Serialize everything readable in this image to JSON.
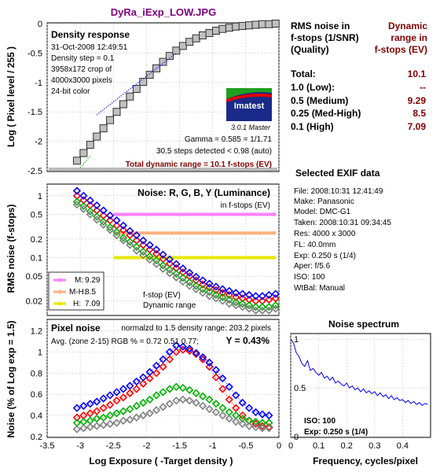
{
  "title": "DyRa_iExp_LOW.JPG",
  "colors": {
    "title": "#800080",
    "dark_red": "#800000",
    "panel_bg": "#ffffff",
    "red": "#ff0000",
    "green": "#00b000",
    "blue": "#0000ff",
    "gray": "#808080",
    "band_m": "#ff80ff",
    "band_mh": "#ffb080",
    "band_h": "#e8e800"
  },
  "density": {
    "heading": "Density response",
    "info": [
      "31-Oct-2008 12:49:51",
      "Density step = 0.1",
      "3958x172 crop of",
      "4000x3000 pixels",
      "24-bit color"
    ],
    "logo": "Imatest",
    "version": "3.0.1  Master",
    "gamma": "Gamma = 0.585 = 1/1.71",
    "steps": "30.5 steps detected < 0.98 (auto)",
    "total": "Total dynamic range = 10.1 f-stops (EV)",
    "ylabel": "Log ( Pixel level / 255 )",
    "yticks": [
      "0",
      "-0.5",
      "-1",
      "-1.5",
      "-2",
      "-2.5"
    ]
  },
  "dr_table": {
    "header_left": [
      "RMS noise in",
      "f-stops (1/SNR)",
      "(Quality)"
    ],
    "header_right": [
      "Dynamic",
      "range in",
      "f-stops (EV)"
    ],
    "rows": [
      {
        "label": "Total:",
        "value": "10.1"
      },
      {
        "label": "1.0   (Low):",
        "value": "--"
      },
      {
        "label": "0.5   (Medium)",
        "value": "9.29"
      },
      {
        "label": "0.25 (Med-High)",
        "value": "8.5"
      },
      {
        "label": "0.1   (High)",
        "value": "7.09"
      }
    ]
  },
  "exif": {
    "heading": "Selected EXIF data",
    "lines": [
      "File:  2008:10:31 12:41:49",
      "Make:  Panasonic",
      "Model: DMC-G1",
      "Taken: 2008:10:31 09:34:45",
      "Res:   4000 x 3000",
      "FL:  40.0mm",
      "Exp:  0.250 s  (1/4)",
      "Aper:  f/5.6",
      "ISO:   100",
      "WtBal:  Manual"
    ]
  },
  "noise": {
    "heading": "Noise: R, G, B, Y (Luminance)",
    "sub": "in f-stops (EV)",
    "ylabel": "RMS noise (f-stops)",
    "yticks": [
      "1",
      "0.5",
      "0.2",
      "0.1",
      "0.05",
      "0.02"
    ],
    "legend": [
      {
        "label": "M:",
        "value": "9.29"
      },
      {
        "label": "M-H:",
        "value": "8.5"
      },
      {
        "label": "H:",
        "value": "7.09"
      }
    ],
    "legend_note": [
      "f-stop (EV)",
      "Dynamic range"
    ]
  },
  "pixel": {
    "heading": "Pixel noise",
    "norm": "normalzd to 1.5 density range: 203.2 pixels",
    "avg": "Avg. (zone 2-15) RGB % = 0.72  0.51  0.77;",
    "y": "Y = 0.43%",
    "ylabel": "Noise (% of Log exp = 1.5)",
    "yticks": [
      "1.2",
      "1",
      "0.8",
      "0.6",
      "0.4",
      "0.2"
    ],
    "xticks": [
      "-3.5",
      "-3",
      "-2.5",
      "-2",
      "-1.5",
      "-1",
      "-0.5",
      "0"
    ],
    "xlabel": "Log Exposure ( -Target density )"
  },
  "spectrum": {
    "heading": "Noise spectrum",
    "iso": "ISO:   100",
    "exp": "Exp:  0.250 s  (1/4)",
    "yticks": [
      "1",
      "0.5",
      "0"
    ],
    "xticks": [
      "0",
      "0.1",
      "0.2",
      "0.3",
      "0.4"
    ],
    "xlabel": "Frequency, cycles/pixel"
  },
  "chart_data": [
    {
      "type": "scatter",
      "title": "Density response",
      "ylabel": "Log ( Pixel level / 255 )",
      "xlim": [
        -3.5,
        0
      ],
      "ylim": [
        -2.5,
        0
      ],
      "series": [
        {
          "values_x": [
            -3.05,
            -2.95,
            -2.85,
            -2.75,
            -2.65,
            -2.55,
            -2.45,
            -2.35,
            -2.25,
            -2.15,
            -2.05,
            -1.95,
            -1.85,
            -1.75,
            -1.65,
            -1.55,
            -1.45,
            -1.35,
            -1.25,
            -1.15,
            -1.05,
            -0.95,
            -0.85,
            -0.75,
            -0.65,
            -0.55,
            -0.45,
            -0.35,
            -0.25,
            -0.15,
            -0.05
          ],
          "values_y": [
            -2.33,
            -2.2,
            -2.06,
            -1.92,
            -1.78,
            -1.64,
            -1.5,
            -1.37,
            -1.24,
            -1.11,
            -0.99,
            -0.87,
            -0.76,
            -0.65,
            -0.55,
            -0.46,
            -0.38,
            -0.31,
            -0.25,
            -0.2,
            -0.16,
            -0.12,
            -0.09,
            -0.07,
            -0.05,
            -0.04,
            -0.03,
            -0.02,
            -0.01,
            -0.01,
            0.0
          ]
        }
      ]
    },
    {
      "type": "scatter",
      "title": "Noise: R, G, B, Y (Luminance)",
      "ylabel": "RMS noise (f-stops)",
      "xlim": [
        -3.5,
        0
      ],
      "ylim": [
        0.01,
        1.5
      ],
      "yscale": "log",
      "bands": [
        {
          "name": "M",
          "value": 0.5
        },
        {
          "name": "M-H",
          "value": 0.25
        },
        {
          "name": "H",
          "value": 0.1
        }
      ],
      "x": [
        -3.05,
        -2.95,
        -2.85,
        -2.75,
        -2.65,
        -2.55,
        -2.45,
        -2.35,
        -2.25,
        -2.15,
        -2.05,
        -1.95,
        -1.85,
        -1.75,
        -1.65,
        -1.55,
        -1.45,
        -1.35,
        -1.25,
        -1.15,
        -1.05,
        -0.95,
        -0.85,
        -0.75,
        -0.65,
        -0.55,
        -0.45,
        -0.35,
        -0.25,
        -0.15,
        -0.05
      ],
      "series": [
        {
          "name": "R",
          "values": [
            1.0,
            0.85,
            0.7,
            0.58,
            0.48,
            0.4,
            0.33,
            0.28,
            0.23,
            0.19,
            0.16,
            0.135,
            0.115,
            0.095,
            0.08,
            0.068,
            0.058,
            0.05,
            0.043,
            0.037,
            0.033,
            0.03,
            0.027,
            0.025,
            0.023,
            0.022,
            0.021,
            0.02,
            0.02,
            0.021,
            0.022
          ]
        },
        {
          "name": "G",
          "values": [
            0.8,
            0.68,
            0.56,
            0.46,
            0.38,
            0.31,
            0.26,
            0.21,
            0.18,
            0.15,
            0.125,
            0.105,
            0.09,
            0.075,
            0.064,
            0.055,
            0.047,
            0.04,
            0.035,
            0.031,
            0.028,
            0.025,
            0.023,
            0.021,
            0.019,
            0.018,
            0.017,
            0.016,
            0.016,
            0.016,
            0.017
          ]
        },
        {
          "name": "B",
          "values": [
            1.2,
            1.0,
            0.84,
            0.7,
            0.58,
            0.48,
            0.4,
            0.33,
            0.27,
            0.23,
            0.19,
            0.16,
            0.135,
            0.112,
            0.094,
            0.079,
            0.067,
            0.057,
            0.049,
            0.043,
            0.038,
            0.034,
            0.031,
            0.029,
            0.027,
            0.026,
            0.025,
            0.024,
            0.024,
            0.025,
            0.026
          ]
        },
        {
          "name": "Y",
          "values": [
            0.72,
            0.61,
            0.5,
            0.41,
            0.34,
            0.28,
            0.23,
            0.19,
            0.16,
            0.13,
            0.11,
            0.093,
            0.079,
            0.066,
            0.056,
            0.048,
            0.041,
            0.035,
            0.031,
            0.027,
            0.024,
            0.022,
            0.02,
            0.018,
            0.017,
            0.016,
            0.015,
            0.014,
            0.014,
            0.014,
            0.015
          ]
        }
      ]
    },
    {
      "type": "scatter",
      "title": "Pixel noise",
      "xlabel": "Log Exposure ( -Target density )",
      "ylabel": "Noise (% of Log exp = 1.5)",
      "xlim": [
        -3.5,
        0
      ],
      "ylim": [
        0.2,
        1.3
      ],
      "x": [
        -3.05,
        -2.95,
        -2.85,
        -2.75,
        -2.65,
        -2.55,
        -2.45,
        -2.35,
        -2.25,
        -2.15,
        -2.05,
        -1.95,
        -1.85,
        -1.75,
        -1.65,
        -1.55,
        -1.45,
        -1.35,
        -1.25,
        -1.15,
        -1.05,
        -0.95,
        -0.85,
        -0.75,
        -0.65,
        -0.55,
        -0.45,
        -0.35,
        -0.25,
        -0.15
      ],
      "series": [
        {
          "name": "R",
          "values": [
            0.38,
            0.4,
            0.42,
            0.44,
            0.47,
            0.5,
            0.54,
            0.57,
            0.61,
            0.65,
            0.7,
            0.75,
            0.8,
            0.86,
            0.93,
            1.0,
            1.02,
            1.01,
            0.98,
            0.93,
            0.86,
            0.76,
            0.65,
            0.55,
            0.47,
            0.4,
            0.35,
            0.32,
            0.3,
            0.29
          ]
        },
        {
          "name": "G",
          "values": [
            0.33,
            0.34,
            0.35,
            0.37,
            0.38,
            0.4,
            0.42,
            0.44,
            0.46,
            0.49,
            0.52,
            0.55,
            0.59,
            0.62,
            0.65,
            0.67,
            0.66,
            0.64,
            0.61,
            0.58,
            0.55,
            0.51,
            0.47,
            0.43,
            0.4,
            0.37,
            0.35,
            0.34,
            0.33,
            0.33
          ]
        },
        {
          "name": "B",
          "values": [
            0.47,
            0.49,
            0.51,
            0.53,
            0.56,
            0.59,
            0.62,
            0.65,
            0.68,
            0.72,
            0.76,
            0.81,
            0.87,
            0.93,
            1.0,
            1.06,
            1.05,
            1.03,
            0.99,
            0.95,
            0.9,
            0.83,
            0.75,
            0.67,
            0.59,
            0.52,
            0.47,
            0.43,
            0.41,
            0.4
          ]
        },
        {
          "name": "Y",
          "values": [
            0.27,
            0.28,
            0.29,
            0.3,
            0.31,
            0.32,
            0.33,
            0.35,
            0.36,
            0.38,
            0.4,
            0.42,
            0.45,
            0.48,
            0.51,
            0.54,
            0.55,
            0.54,
            0.52,
            0.49,
            0.46,
            0.43,
            0.4,
            0.37,
            0.34,
            0.32,
            0.3,
            0.29,
            0.28,
            0.28
          ]
        }
      ]
    },
    {
      "type": "line",
      "title": "Noise spectrum",
      "xlabel": "Frequency, cycles/pixel",
      "xlim": [
        0,
        0.5
      ],
      "ylim": [
        0,
        1.05
      ],
      "x": [
        0.0,
        0.01,
        0.02,
        0.03,
        0.04,
        0.05,
        0.06,
        0.07,
        0.08,
        0.09,
        0.1,
        0.11,
        0.12,
        0.13,
        0.14,
        0.15,
        0.16,
        0.17,
        0.18,
        0.19,
        0.2,
        0.21,
        0.22,
        0.23,
        0.24,
        0.25,
        0.26,
        0.27,
        0.28,
        0.29,
        0.3,
        0.31,
        0.32,
        0.33,
        0.34,
        0.35,
        0.36,
        0.37,
        0.38,
        0.39,
        0.4,
        0.41,
        0.42,
        0.43,
        0.44,
        0.45,
        0.46,
        0.47,
        0.48,
        0.49
      ],
      "series": [
        {
          "name": "Y",
          "values": [
            1.0,
            0.96,
            0.86,
            0.82,
            0.75,
            0.72,
            0.78,
            0.68,
            0.7,
            0.66,
            0.63,
            0.66,
            0.6,
            0.62,
            0.58,
            0.61,
            0.55,
            0.57,
            0.54,
            0.52,
            0.55,
            0.5,
            0.52,
            0.48,
            0.5,
            0.46,
            0.49,
            0.45,
            0.47,
            0.44,
            0.46,
            0.42,
            0.45,
            0.41,
            0.43,
            0.39,
            0.42,
            0.38,
            0.4,
            0.37,
            0.38,
            0.35,
            0.37,
            0.34,
            0.36,
            0.33,
            0.35,
            0.32,
            0.34,
            0.33
          ]
        }
      ]
    }
  ]
}
